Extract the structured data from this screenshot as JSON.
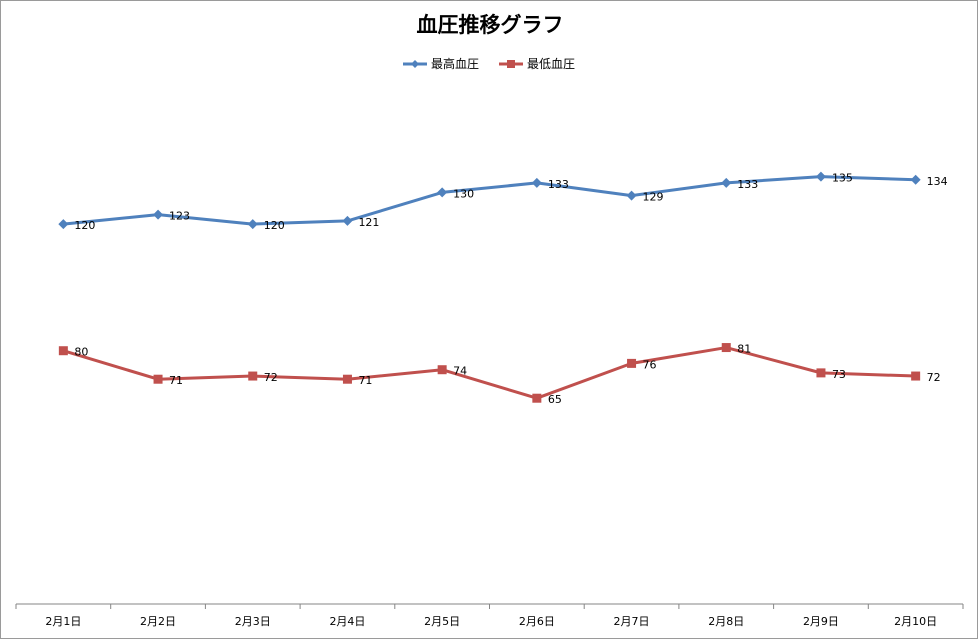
{
  "chart_data": {
    "type": "line",
    "title": "血圧推移グラフ",
    "categories": [
      "2月1日",
      "2月2日",
      "2月3日",
      "2月4日",
      "2月5日",
      "2月6日",
      "2月7日",
      "2月8日",
      "2月9日",
      "2月10日"
    ],
    "series": [
      {
        "name": "最高血圧",
        "values": [
          120,
          123,
          120,
          121,
          130,
          133,
          129,
          133,
          135,
          134
        ],
        "color": "#4f81bd",
        "marker": "diamond"
      },
      {
        "name": "最低血圧",
        "values": [
          80,
          71,
          72,
          71,
          74,
          65,
          76,
          81,
          73,
          72
        ],
        "color": "#c0504d",
        "marker": "square"
      }
    ],
    "ylim": [
      0,
      160
    ],
    "y_axis_visible": false,
    "grid": false,
    "legend": "top-center",
    "data_labels": true
  }
}
